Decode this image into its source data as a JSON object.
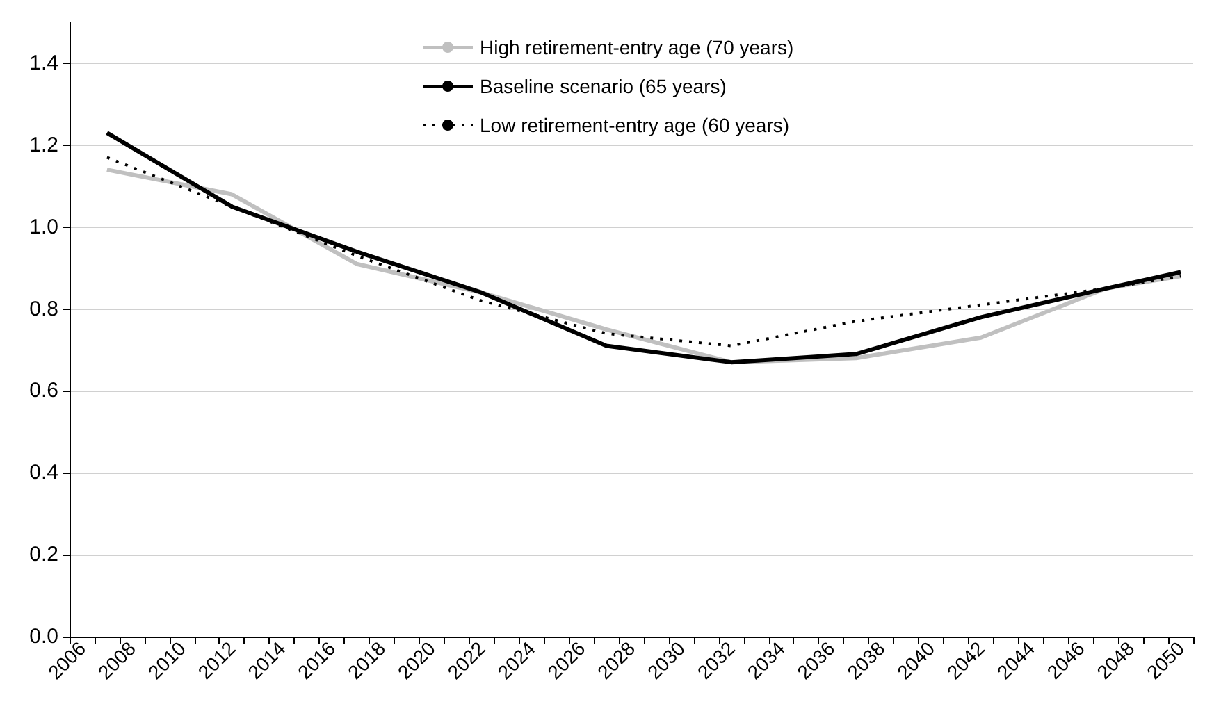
{
  "chart_data": {
    "type": "line",
    "categories": [
      "2006",
      null,
      "2008",
      null,
      "2010",
      null,
      "2012",
      null,
      "2014",
      null,
      "2016",
      null,
      "2018",
      null,
      "2020",
      null,
      "2022",
      null,
      "2024",
      null,
      "2026",
      null,
      "2028",
      null,
      "2030",
      null,
      "2032",
      null,
      "2034",
      null,
      "2036",
      null,
      "2038",
      null,
      "2040",
      null,
      "2042",
      null,
      "2044",
      null,
      "2046",
      null,
      "2048",
      null,
      "2050"
    ],
    "series": [
      {
        "name": "High retirement-entry age (70 years)",
        "color": "#c0c0c0",
        "line_style": "solid",
        "values": [
          null,
          1.14,
          null,
          null,
          null,
          null,
          1.08,
          null,
          null,
          null,
          null,
          0.91,
          null,
          null,
          null,
          null,
          0.84,
          null,
          null,
          null,
          null,
          0.75,
          null,
          null,
          null,
          null,
          0.67,
          null,
          null,
          null,
          null,
          0.68,
          null,
          null,
          null,
          null,
          0.73,
          null,
          null,
          null,
          null,
          0.85,
          null,
          null,
          0.88
        ]
      },
      {
        "name": "Baseline scenario (65 years)",
        "color": "#000000",
        "line_style": "solid",
        "values": [
          null,
          1.23,
          null,
          null,
          null,
          null,
          1.05,
          null,
          null,
          null,
          null,
          0.94,
          null,
          null,
          null,
          null,
          0.84,
          null,
          null,
          null,
          null,
          0.71,
          null,
          null,
          null,
          null,
          0.67,
          null,
          null,
          null,
          null,
          0.69,
          null,
          null,
          null,
          null,
          0.78,
          null,
          null,
          null,
          null,
          0.85,
          null,
          null,
          0.89
        ]
      },
      {
        "name": "Low retirement-entry age (60 years)",
        "color": "#000000",
        "line_style": "dotted",
        "values": [
          null,
          1.17,
          null,
          null,
          null,
          null,
          1.05,
          null,
          null,
          null,
          null,
          0.93,
          null,
          null,
          null,
          null,
          0.82,
          null,
          null,
          null,
          null,
          0.74,
          null,
          null,
          null,
          null,
          0.71,
          null,
          null,
          null,
          null,
          0.77,
          null,
          null,
          null,
          null,
          0.81,
          null,
          null,
          null,
          null,
          0.85,
          null,
          null,
          0.88
        ]
      }
    ],
    "ylim": [
      0,
      1.5
    ],
    "yticks": [
      {
        "value": 0,
        "label": "0.0"
      },
      0.2,
      0.4,
      0.6,
      0.8,
      {
        "value": 1,
        "label": "1.0"
      },
      1.2,
      1.4
    ],
    "grid": "y",
    "legend": "top",
    "marker": "none"
  }
}
